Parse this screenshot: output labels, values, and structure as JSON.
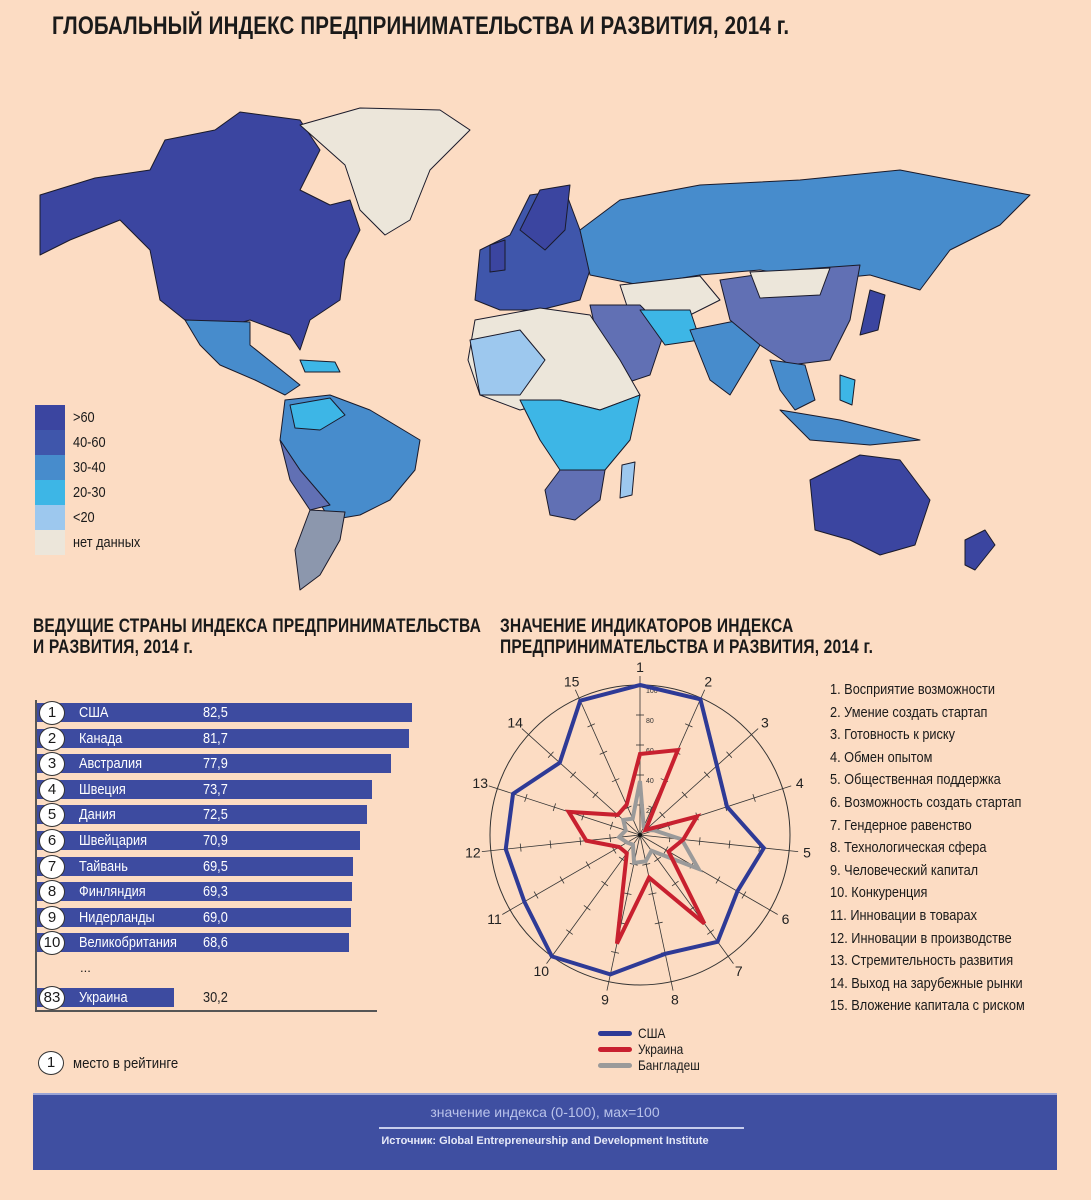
{
  "header": {
    "title": "ГЛОБАЛЬНЫЙ ИНДЕКС ПРЕДПРИНИМАТЕЛЬСТВА И РАЗВИТИЯ, 2014 г."
  },
  "map_legend": {
    "items": [
      {
        "label": ">60",
        "color": "#3b45a0"
      },
      {
        "label": "40-60",
        "color": "#3f56ab"
      },
      {
        "label": "30-40",
        "color": "#478ccc"
      },
      {
        "label": "20-30",
        "color": "#3db6e6"
      },
      {
        "label": "<20",
        "color": "#9dc8ee"
      },
      {
        "label": "нет данных",
        "color": "#ece6da"
      }
    ]
  },
  "chart_data": [
    {
      "type": "bar",
      "title": "ВЕДУЩИЕ СТРАНЫ ИНДЕКСА ПРЕДПРИНИМАТЕЛЬСТВА И РАЗВИТИЯ, 2014 г.",
      "title_lines": [
        "ВЕДУЩИЕ СТРАНЫ ИНДЕКСА ПРЕДПРИНИМАТЕЛЬСТВА",
        "И РАЗВИТИЯ, 2014 г."
      ],
      "orientation": "horizontal",
      "rows": [
        {
          "rank": "1",
          "country": "США",
          "value": 82.5,
          "label": "82,5"
        },
        {
          "rank": "2",
          "country": "Канада",
          "value": 81.7,
          "label": "81,7"
        },
        {
          "rank": "3",
          "country": "Австралия",
          "value": 77.9,
          "label": "77,9"
        },
        {
          "rank": "4",
          "country": "Швеция",
          "value": 73.7,
          "label": "73,7"
        },
        {
          "rank": "5",
          "country": "Дания",
          "value": 72.5,
          "label": "72,5"
        },
        {
          "rank": "6",
          "country": "Швейцария",
          "value": 70.9,
          "label": "70,9"
        },
        {
          "rank": "7",
          "country": "Тайвань",
          "value": 69.5,
          "label": "69,5"
        },
        {
          "rank": "8",
          "country": "Финляндия",
          "value": 69.3,
          "label": "69,3"
        },
        {
          "rank": "9",
          "country": "Нидерланды",
          "value": 69.0,
          "label": "69,0"
        },
        {
          "rank": "10",
          "country": "Великобритания",
          "value": 68.6,
          "label": "68,6"
        },
        {
          "rank": "83",
          "country": "Украина",
          "value": 30.2,
          "label": "30,2"
        }
      ],
      "ellipsis": "...",
      "xlim": [
        0,
        100
      ],
      "rank_note": {
        "symbol": "1",
        "label": "место в рейтинге"
      }
    },
    {
      "type": "radar",
      "title_lines": [
        "ЗНАЧЕНИЕ ИНДИКАТОРОВ ИНДЕКСА",
        "ПРЕДПРИНИМАТЕЛЬСТВА И РАЗВИТИЯ, 2014 г."
      ],
      "axes": [
        "1",
        "2",
        "3",
        "4",
        "5",
        "6",
        "7",
        "8",
        "9",
        "10",
        "11",
        "12",
        "13",
        "14",
        "15"
      ],
      "indicator_names": [
        "1. Восприятие возможности",
        "2. Умение создать стартап",
        "3. Готовность к риску",
        "4. Обмен опытом",
        "5. Общественная поддержка",
        "6. Возможность создать стартап",
        "7. Гендерное равенство",
        "8. Технологическая сфера",
        "9. Человеческий капитал",
        "10. Конкуренция",
        "11. Инновации в товарах",
        "12. Инновации в производстве",
        "13. Стремительность развития",
        "14. Выход на зарубежные рынки",
        "15. Вложение капитала с риском"
      ],
      "rlim": [
        0,
        100
      ],
      "radial_ticks": [
        "20",
        "40",
        "60",
        "80",
        "100"
      ],
      "series": [
        {
          "name": "США",
          "color": "#2e3a96",
          "values": [
            100,
            99,
            69,
            61,
            83,
            75,
            88,
            81,
            95,
            100,
            89,
            90,
            89,
            72,
            98
          ]
        },
        {
          "name": "Украина",
          "color": "#c8202f",
          "values": [
            54,
            62,
            5,
            40,
            29,
            22,
            73,
            29,
            74,
            15,
            16,
            36,
            50,
            20,
            22
          ]
        },
        {
          "name": "Бангладеш",
          "color": "#9a9a9a",
          "values": [
            36,
            6,
            5,
            10,
            28,
            45,
            13,
            18,
            19,
            8,
            10,
            14,
            10,
            15,
            12
          ]
        }
      ]
    }
  ],
  "footer": {
    "note": "значение индекса (0-100), мах=100",
    "source": "Источник: Global Entrepreneurship and Development Institute"
  }
}
